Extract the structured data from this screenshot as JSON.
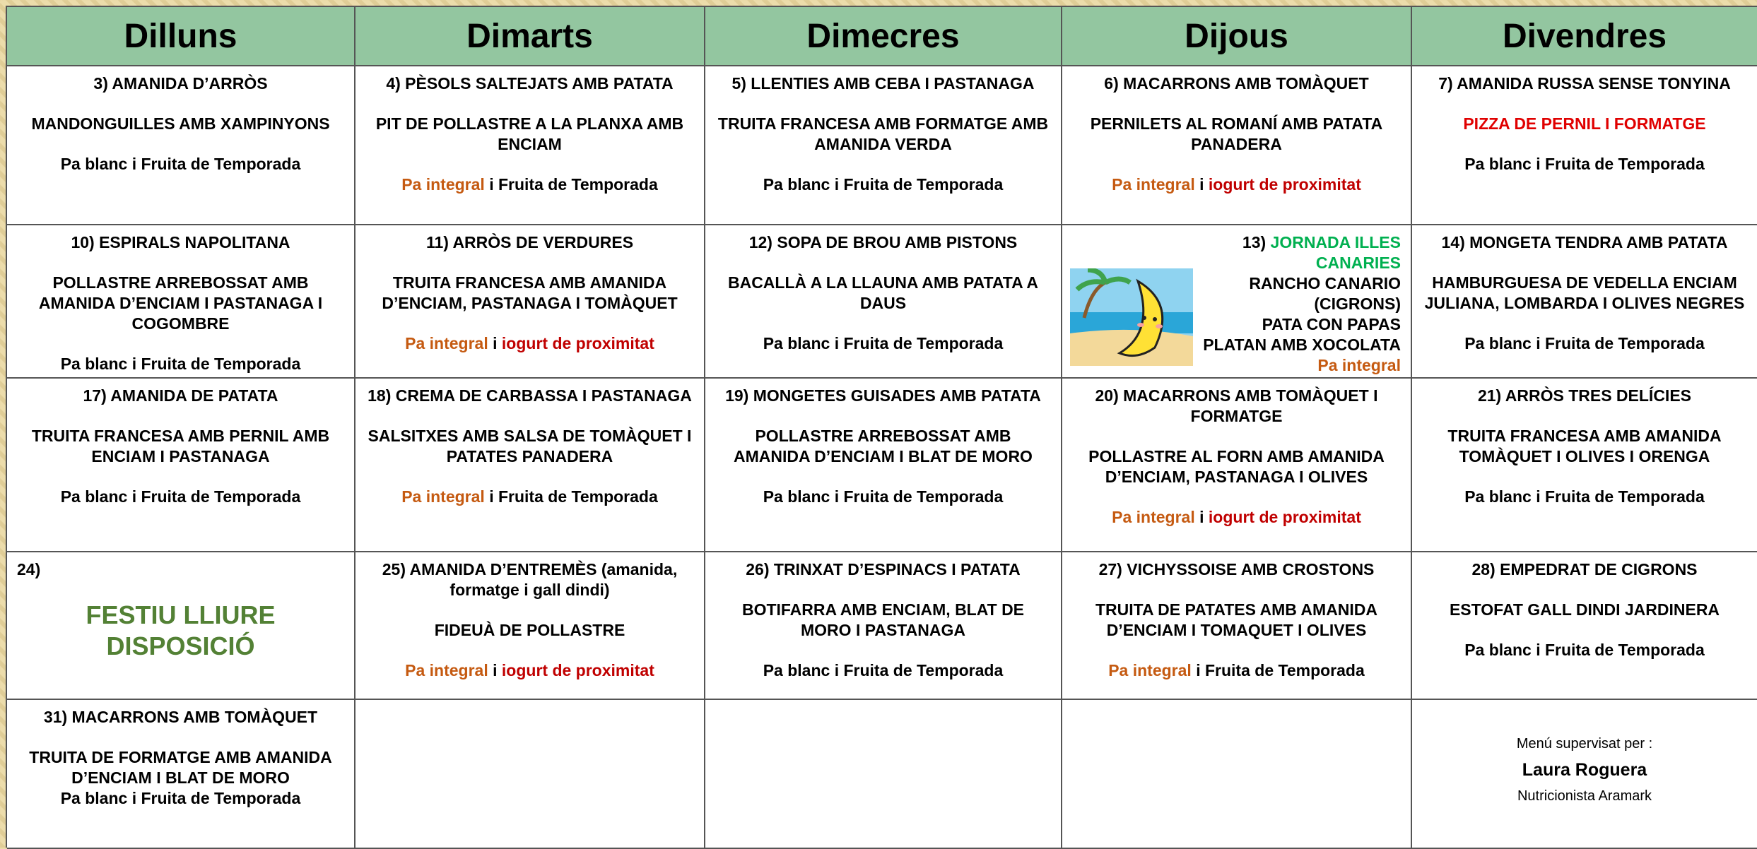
{
  "header": {
    "days": [
      "Dilluns",
      "Dimarts",
      "Dimecres",
      "Dijous",
      "Divendres"
    ]
  },
  "rows": [
    [
      {
        "blocks": [
          [
            {
              "text": "3) AMANIDA D’ARRÒS"
            }
          ],
          [
            {
              "text": "MANDONGUILLES AMB XAMPINYONS"
            }
          ],
          [
            {
              "text": "Pa blanc i Fruita de Temporada"
            }
          ]
        ]
      },
      {
        "blocks": [
          [
            {
              "text": "4) PÈSOLS SALTEJATS AMB PATATA"
            }
          ],
          [
            {
              "text": "PIT DE POLLASTRE A LA PLANXA AMB ENCIAM"
            }
          ],
          [
            {
              "text": "Pa integral ",
              "color": "#c55a11"
            },
            {
              "text": " i Fruita de Temporada"
            }
          ]
        ]
      },
      {
        "blocks": [
          [
            {
              "text": "5) LLENTIES AMB CEBA I PASTANAGA"
            }
          ],
          [
            {
              "text": "TRUITA FRANCESA AMB FORMATGE AMB AMANIDA VERDA"
            }
          ],
          [
            {
              "text": "Pa blanc i Fruita de Temporada"
            }
          ]
        ]
      },
      {
        "blocks": [
          [
            {
              "text": "6) MACARRONS AMB TOMÀQUET"
            }
          ],
          [
            {
              "text": "PERNILETS AL ROMANÍ AMB PATATA PANADERA"
            }
          ],
          [
            {
              "text": "Pa integral ",
              "color": "#c55a11"
            },
            {
              "text": " i "
            },
            {
              "text": "iogurt de proximitat",
              "color": "#c00000"
            }
          ]
        ]
      },
      {
        "blocks": [
          [
            {
              "text": "7) AMANIDA RUSSA SENSE TONYINA"
            }
          ],
          [
            {
              "text": "PIZZA DE PERNIL I FORMATGE",
              "color": "#e00000"
            }
          ],
          [
            {
              "text": "Pa blanc i Fruita de Temporada"
            }
          ]
        ]
      }
    ],
    [
      {
        "blocks": [
          [
            {
              "text": "10) ESPIRALS NAPOLITANA"
            }
          ],
          [
            {
              "text": "POLLASTRE ARREBOSSAT AMB AMANIDA D’ENCIAM I PASTANAGA I COGOMBRE"
            }
          ],
          [
            {
              "text": "Pa blanc i Fruita de Temporada"
            }
          ]
        ]
      },
      {
        "blocks": [
          [
            {
              "text": "11) ARRÒS DE VERDURES"
            }
          ],
          [
            {
              "text": "TRUITA FRANCESA AMB AMANIDA D’ENCIAM, PASTANAGA I TOMÀQUET"
            }
          ],
          [
            {
              "text": "Pa integral ",
              "color": "#c55a11"
            },
            {
              "text": " i "
            },
            {
              "text": "iogurt de proximitat",
              "color": "#c00000"
            }
          ]
        ]
      },
      {
        "blocks": [
          [
            {
              "text": "12) SOPA DE BROU AMB PISTONS"
            }
          ],
          [
            {
              "text": "BACALLÀ A LA LLAUNA AMB PATATA A DAUS"
            }
          ],
          [
            {
              "text": "Pa blanc i Fruita de Temporada"
            }
          ]
        ]
      },
      {
        "blocks": [
          [
            {
              "text": "13) "
            },
            {
              "text": "JORNADA ILLES CANARIES",
              "color": "#00b050"
            }
          ],
          [
            {
              "text": "RANCHO CANARIO (CIGRONS)"
            }
          ],
          [
            {
              "text": "PATA CON PAPAS"
            }
          ],
          [
            {
              "text": "PLATAN AMB XOCOLATA"
            }
          ],
          [
            {
              "text": "Pa integral",
              "color": "#c55a11"
            }
          ]
        ]
      },
      {
        "blocks": [
          [
            {
              "text": "14) MONGETA TENDRA AMB PATATA"
            }
          ],
          [
            {
              "text": "HAMBURGUESA DE VEDELLA ENCIAM JULIANA, LOMBARDA I OLIVES NEGRES"
            }
          ],
          [
            {
              "text": "Pa blanc i Fruita de Temporada"
            }
          ]
        ]
      }
    ],
    [
      {
        "blocks": [
          [
            {
              "text": "17) AMANIDA DE PATATA"
            }
          ],
          [
            {
              "text": "TRUITA FRANCESA AMB PERNIL AMB ENCIAM I PASTANAGA"
            }
          ],
          [
            {
              "text": "Pa blanc i Fruita de Temporada"
            }
          ]
        ]
      },
      {
        "blocks": [
          [
            {
              "text": "18) CREMA DE CARBASSA I PASTANAGA"
            }
          ],
          [
            {
              "text": "SALSITXES AMB SALSA DE TOMÀQUET I PATATES PANADERA"
            }
          ],
          [
            {
              "text": "Pa integral ",
              "color": "#c55a11"
            },
            {
              "text": " i Fruita de Temporada"
            }
          ]
        ]
      },
      {
        "blocks": [
          [
            {
              "text": "19) MONGETES GUISADES AMB PATATA"
            }
          ],
          [
            {
              "text": "POLLASTRE ARREBOSSAT AMB AMANIDA D’ENCIAM I BLAT DE MORO"
            }
          ],
          [
            {
              "text": "Pa blanc i Fruita de Temporada"
            }
          ]
        ]
      },
      {
        "blocks": [
          [
            {
              "text": "20) MACARRONS AMB TOMÀQUET I FORMATGE"
            }
          ],
          [
            {
              "text": "POLLASTRE AL FORN AMB AMANIDA D’ENCIAM, PASTANAGA I OLIVES"
            }
          ],
          [
            {
              "text": "Pa integral ",
              "color": "#c55a11"
            },
            {
              "text": " i "
            },
            {
              "text": "iogurt de proximitat",
              "color": "#c00000"
            }
          ]
        ]
      },
      {
        "blocks": [
          [
            {
              "text": "21)  ARRÒS TRES DELÍCIES"
            }
          ],
          [
            {
              "text": "TRUITA FRANCESA AMB AMANIDA TOMÀQUET I OLIVES I ORENGA"
            }
          ],
          [
            {
              "text": "Pa blanc i Fruita de Temporada"
            }
          ]
        ]
      }
    ],
    [
      {
        "blocks": [
          [
            {
              "text": "24)"
            }
          ],
          [
            {
              "text": "FESTIU LLIURE DISPOSICIÓ",
              "color": "#538135"
            }
          ]
        ]
      },
      {
        "blocks": [
          [
            {
              "text": "25) AMANIDA D’ENTREMÈS (amanida, formatge i gall dindi)"
            }
          ],
          [
            {
              "text": "FIDEUÀ DE POLLASTRE"
            }
          ],
          [
            {
              "text": "Pa integral ",
              "color": "#c55a11"
            },
            {
              "text": " i "
            },
            {
              "text": "iogurt de proximitat",
              "color": "#c00000"
            }
          ]
        ]
      },
      {
        "blocks": [
          [
            {
              "text": "26) TRINXAT D’ESPINACS I PATATA"
            }
          ],
          [
            {
              "text": "BOTIFARRA AMB ENCIAM, BLAT DE MORO I PASTANAGA"
            }
          ],
          [
            {
              "text": "Pa blanc i Fruita de Temporada"
            }
          ]
        ]
      },
      {
        "blocks": [
          [
            {
              "text": "27) VICHYSSOISE AMB CROSTONS"
            }
          ],
          [
            {
              "text": "TRUITA DE PATATES AMB AMANIDA D’ENCIAM I TOMAQUET I OLIVES"
            }
          ],
          [
            {
              "text": "Pa integral ",
              "color": "#c55a11"
            },
            {
              "text": " i Fruita de Temporada"
            }
          ]
        ]
      },
      {
        "blocks": [
          [
            {
              "text": "28) EMPEDRAT DE CIGRONS"
            }
          ],
          [
            {
              "text": "ESTOFAT GALL DINDI JARDINERA"
            }
          ],
          [
            {
              "text": "Pa blanc i Fruita de Temporada"
            }
          ]
        ]
      }
    ],
    [
      {
        "blocks": [
          [
            {
              "text": "31) MACARRONS AMB TOMÀQUET"
            }
          ],
          [
            {
              "text": "TRUITA DE FORMATGE AMB AMANIDA D’ENCIAM I BLAT DE MORO"
            }
          ],
          [
            {
              "text": "Pa blanc i Fruita de Temporada"
            }
          ]
        ]
      },
      {
        "blocks": []
      },
      {
        "blocks": []
      },
      {
        "blocks": []
      },
      {
        "blocks": [
          [
            {
              "text": "Menú supervisat per :"
            }
          ],
          [
            {
              "text": "Laura Roguera"
            }
          ],
          [
            {
              "text": "Nutricionista Aramark"
            }
          ]
        ]
      }
    ]
  ]
}
